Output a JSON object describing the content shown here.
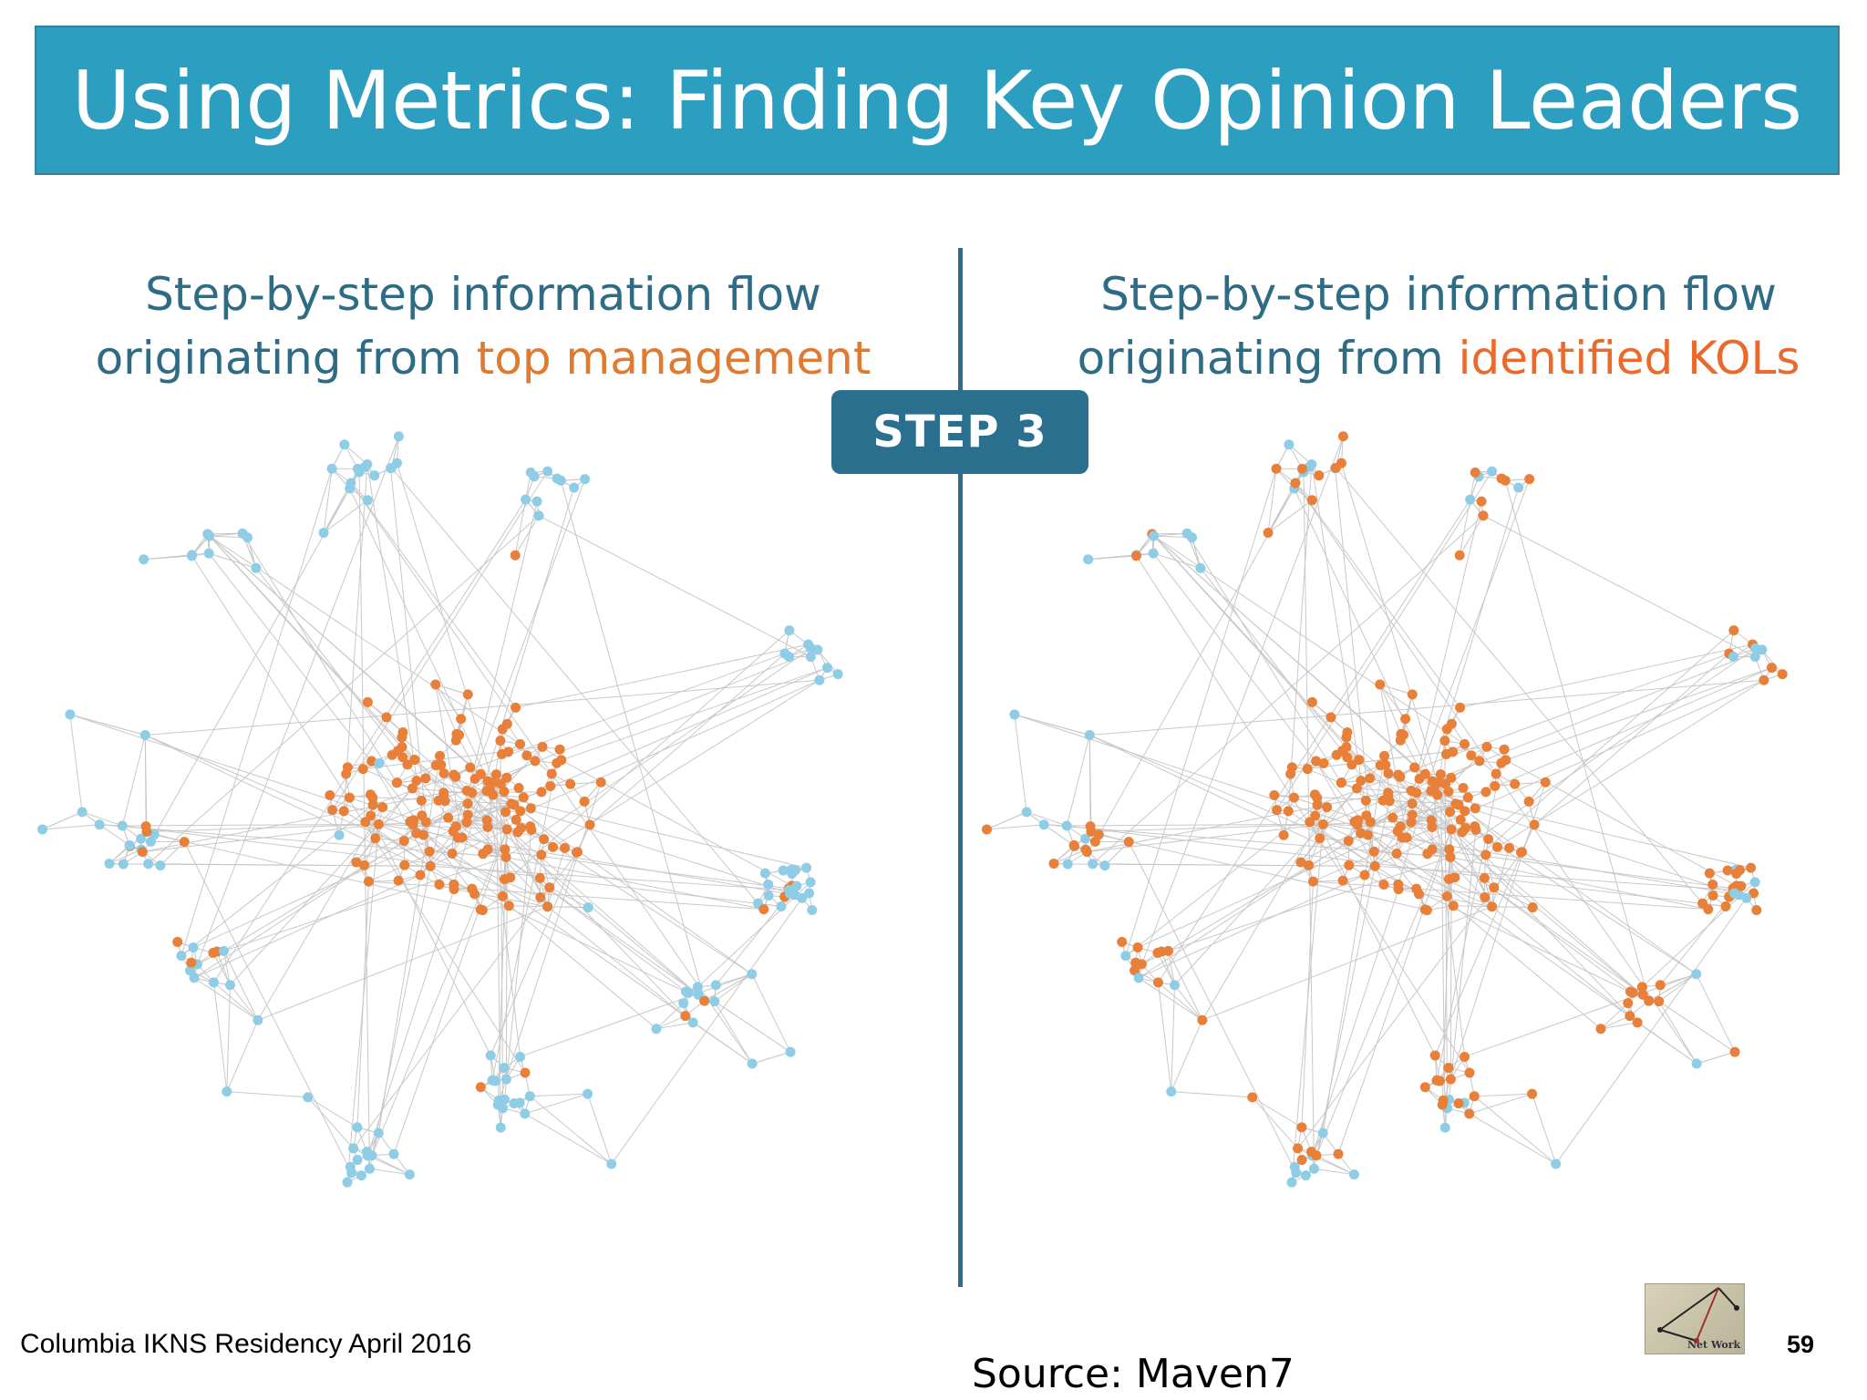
{
  "slide": {
    "title": "Using Metrics: Finding Key Opinion Leaders",
    "step_badge": "STEP 3",
    "left_panel": {
      "heading_line1": "Step-by-step information flow",
      "heading_line2_prefix": "originating from ",
      "heading_line2_accent": "top management"
    },
    "right_panel": {
      "heading_line1": "Step-by-step information flow",
      "heading_line2_prefix": "originating from ",
      "heading_line2_accent": "identified KOLs"
    },
    "footer": "Columbia IKNS Residency April 2016",
    "source": "Source: Maven7",
    "page_number": "59",
    "logo_text": "Net Work"
  },
  "colors": {
    "title_bar": "#2c9fc0",
    "heading_text": "#2e6b85",
    "accent_left": "#e07a30",
    "accent_right": "#ea6a2e",
    "informed_node": "#e8803a",
    "uninformed_node": "#8fcde6",
    "edge": "#c8c8c8",
    "divider": "#2f6f8a",
    "badge": "#2a6f8e"
  },
  "network": {
    "left_informed_share": 0.55,
    "right_informed_share": 0.82
  }
}
